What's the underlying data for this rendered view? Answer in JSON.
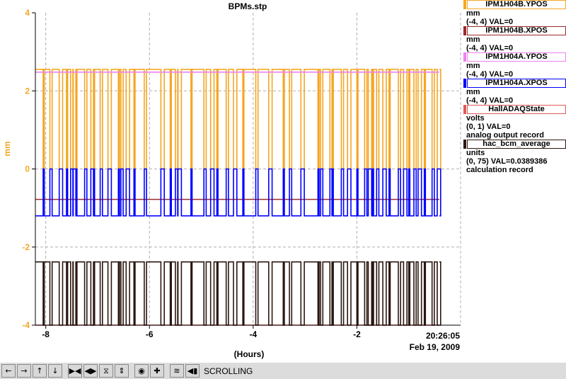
{
  "chart_data": {
    "type": "line",
    "title": "BPMs.stp",
    "xlabel": "(Hours)",
    "ylabel": "mm",
    "xlim": [
      -8.2,
      0
    ],
    "ylim": [
      -4,
      4
    ],
    "x_ticks": [
      "-8",
      "-6",
      "-4",
      "-2"
    ],
    "y_ticks": [
      "4",
      "2",
      "0",
      "-2",
      "-4"
    ],
    "grid": true,
    "time_label": "20:26:05",
    "date_label": "Feb 19, 2009",
    "series": [
      {
        "name": "IPM1H04B.YPOS",
        "unit": "mm",
        "range": "(-4, 4) VAL=0",
        "color": "#f5a623",
        "baseline": 2.55,
        "alt": 0.0
      },
      {
        "name": "IPM1H04B.XPOS",
        "unit": "mm",
        "range": "(-4, 4) VAL=0",
        "color": "#9b2b2b",
        "baseline": -0.78,
        "alt": null
      },
      {
        "name": "IPM1H04A.YPOS",
        "unit": "mm",
        "range": "(-4, 4) VAL=0",
        "color": "#ee82ee",
        "baseline": 2.48,
        "alt": null
      },
      {
        "name": "IPM1H04A.XPOS",
        "unit": "mm",
        "range": "(-4, 4) VAL=0",
        "color": "#0000ff",
        "baseline": -1.2,
        "alt": 0.0
      },
      {
        "name": "HallADAQState",
        "unit": "volts",
        "range": "(0, 1) VAL=0",
        "extra": "analog output record",
        "color": "#e05a5a",
        "baseline": -4.0,
        "alt": null
      },
      {
        "name": "hac_bcm_average",
        "unit": "units",
        "range": "(0, 75) VAL=0.0389386",
        "extra": "calculation record",
        "color": "#2b1710",
        "baseline": -2.38,
        "alt": -4.0
      }
    ],
    "dropouts_hours": [
      -8.05,
      -7.92,
      -7.74,
      -7.6,
      -7.52,
      -7.47,
      -7.42,
      -7.25,
      -7.13,
      -7.08,
      -6.95,
      -6.8,
      -6.6,
      -6.55,
      -6.45,
      -6.3,
      -6.1,
      -5.78,
      -5.6,
      -5.5,
      -5.45,
      -5.2,
      -4.95,
      -4.82,
      -4.7,
      -4.52,
      -4.38,
      -4.2,
      -3.95,
      -3.7,
      -3.42,
      -3.3,
      -3.08,
      -2.75,
      -2.7,
      -2.52,
      -2.48,
      -2.3,
      -2.18,
      -2.0,
      -1.85,
      -1.78,
      -1.7,
      -1.62,
      -1.5,
      -1.38,
      -1.2,
      -1.1,
      -1.0,
      -0.9,
      -0.82,
      -0.7,
      -0.55,
      -0.45
    ]
  },
  "toolbar": {
    "buttons": [
      "←",
      "→",
      "↑",
      "↓",
      "▶◀",
      "◀▶",
      "⧖",
      "⇕",
      "◉",
      "✚",
      "≋",
      "◀▮"
    ],
    "mode_label": "SCROLLING"
  }
}
